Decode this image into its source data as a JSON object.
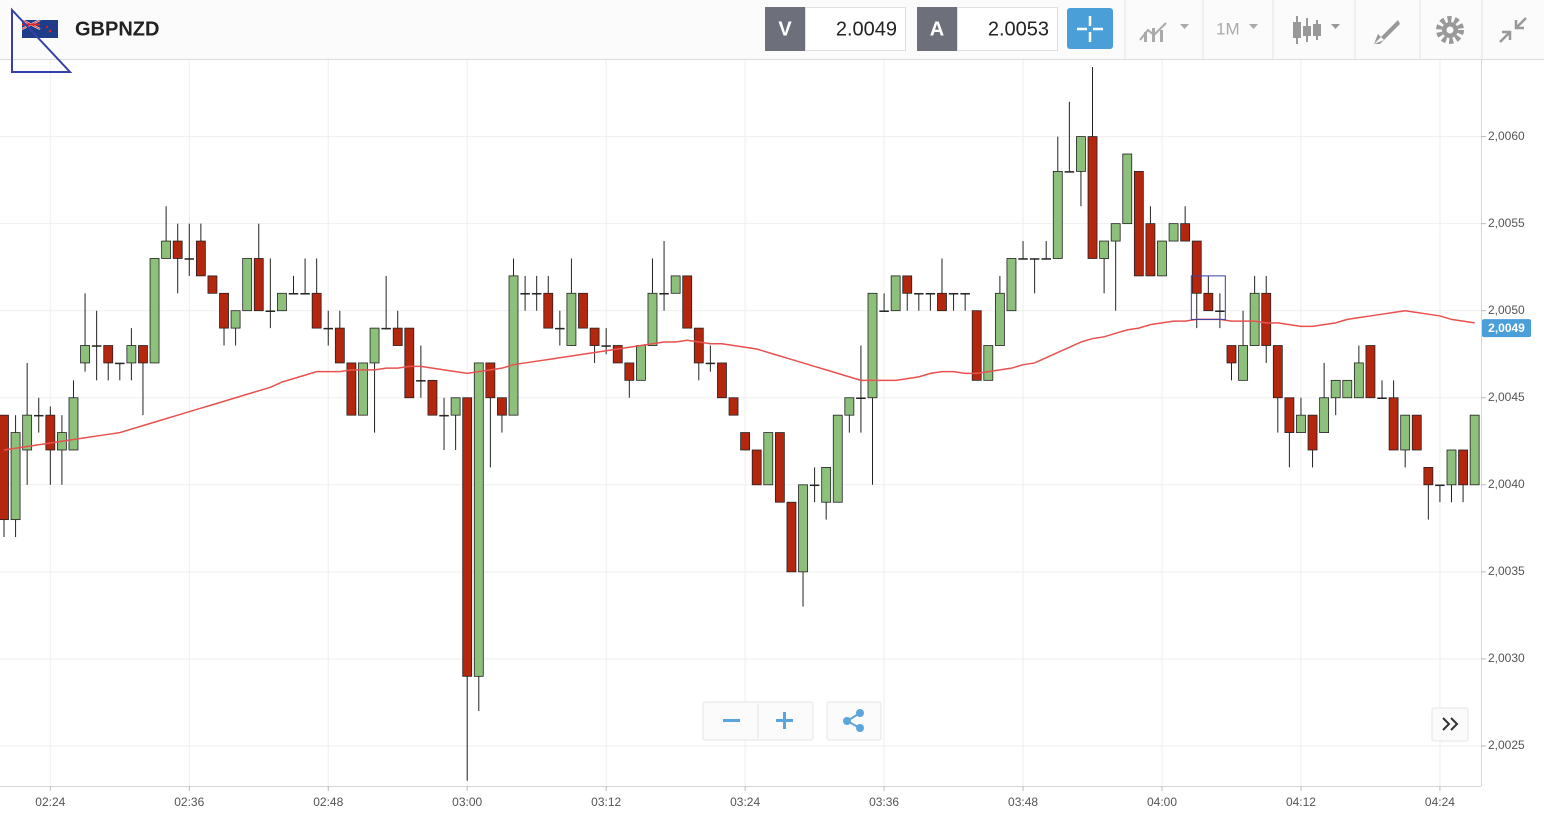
{
  "header": {
    "symbol": "GBPNZD",
    "bid_label": "V",
    "bid": 2.0049,
    "ask_label": "A",
    "ask": 2.0053,
    "timeframe": "1M"
  },
  "chart_data": {
    "type": "candlestick",
    "categories": [
      null,
      null,
      null,
      null,
      "02:24",
      null,
      null,
      null,
      null,
      null,
      null,
      null,
      null,
      null,
      null,
      null,
      "02:36",
      null,
      null,
      null,
      null,
      null,
      null,
      null,
      null,
      null,
      null,
      null,
      "02:48",
      null,
      null,
      null,
      null,
      null,
      null,
      null,
      null,
      null,
      null,
      null,
      "03:00",
      null,
      null,
      null,
      null,
      null,
      null,
      null,
      null,
      null,
      null,
      null,
      "03:12",
      null,
      null,
      null,
      null,
      null,
      null,
      null,
      null,
      null,
      null,
      null,
      "03:24",
      null,
      null,
      null,
      null,
      null,
      null,
      null,
      null,
      null,
      null,
      null,
      "03:36",
      null,
      null,
      null,
      null,
      null,
      null,
      null,
      null,
      null,
      null,
      null,
      "03:48",
      null,
      null,
      null,
      null,
      null,
      null,
      null,
      null,
      null,
      null,
      null,
      "04:00",
      null,
      null,
      null,
      null,
      null,
      null,
      null,
      null,
      null,
      null,
      null,
      "04:12",
      null,
      null,
      null,
      null,
      null,
      null,
      null,
      null,
      null,
      null,
      null,
      "04:24",
      null,
      null,
      null
    ],
    "open": [
      2.0044,
      2.0038,
      2.0042,
      2.0044,
      2.0044,
      2.0042,
      2.0042,
      2.0047,
      2.0048,
      2.0048,
      2.0047,
      2.0047,
      2.0048,
      2.0047,
      2.0053,
      2.0054,
      2.0053,
      2.0054,
      2.0052,
      2.0051,
      2.0049,
      2.005,
      2.0053,
      2.005,
      2.005,
      2.0051,
      2.0051,
      2.0051,
      2.0049,
      2.0049,
      2.0047,
      2.0044,
      2.0047,
      2.0049,
      2.0049,
      2.0049,
      2.0046,
      2.0046,
      2.0044,
      2.0044,
      2.0045,
      2.0029,
      2.0047,
      2.0045,
      2.0044,
      2.0051,
      2.0051,
      2.0051,
      2.0049,
      2.0048,
      2.0051,
      2.0049,
      2.0048,
      2.0048,
      2.0047,
      2.0046,
      2.0048,
      2.0051,
      2.0051,
      2.0052,
      2.0049,
      2.0047,
      2.0047,
      2.0045,
      2.0043,
      2.0042,
      2.004,
      2.0043,
      2.0039,
      2.0035,
      2.004,
      2.0039,
      2.0039,
      2.0044,
      2.0045,
      2.0045,
      2.005,
      2.005,
      2.0052,
      2.0051,
      2.0051,
      2.0051,
      2.0051,
      2.0051,
      2.005,
      2.0046,
      2.0048,
      2.005,
      2.0053,
      2.0053,
      2.0053,
      2.0053,
      2.0058,
      2.0058,
      2.006,
      2.0053,
      2.0054,
      2.0055,
      2.0058,
      2.0055,
      2.0052,
      2.0054,
      2.0055,
      2.0054,
      2.0051,
      2.005,
      2.0048,
      2.0046,
      2.0048,
      2.0051,
      2.0048,
      2.0045,
      2.0043,
      2.0044,
      2.0043,
      2.0045,
      2.0045,
      2.0045,
      2.0048,
      2.0045,
      2.0045,
      2.0042,
      2.0044,
      2.0041,
      2.004,
      2.004,
      2.0042,
      2.004
    ],
    "high": [
      2.0044,
      2.0044,
      2.0047,
      2.0045,
      2.00445,
      2.0044,
      2.0046,
      2.0051,
      2.005,
      2.0048,
      2.0047,
      2.0049,
      2.0048,
      2.0053,
      2.0056,
      2.0055,
      2.0055,
      2.0055,
      2.0052,
      2.0051,
      2.005,
      2.0053,
      2.0055,
      2.0053,
      2.0051,
      2.0052,
      2.0053,
      2.0053,
      2.005,
      2.005,
      2.0047,
      2.0047,
      2.0049,
      2.0052,
      2.005,
      2.0049,
      2.0048,
      2.0046,
      2.0045,
      2.0045,
      2.0045,
      2.0047,
      2.0047,
      2.0045,
      2.0053,
      2.0052,
      2.0052,
      2.0052,
      2.005,
      2.0053,
      2.0051,
      2.0049,
      2.0049,
      2.0048,
      2.0047,
      2.0048,
      2.0053,
      2.0054,
      2.0052,
      2.0052,
      2.0049,
      2.0048,
      2.0047,
      2.0045,
      2.0043,
      2.0042,
      2.0043,
      2.0043,
      2.0039,
      2.004,
      2.0041,
      2.0041,
      2.0044,
      2.0045,
      2.0048,
      2.0051,
      2.0051,
      2.0052,
      2.0052,
      2.0051,
      2.0051,
      2.0053,
      2.0051,
      2.0051,
      2.005,
      2.0048,
      2.0052,
      2.0053,
      2.0054,
      2.0053,
      2.0054,
      2.006,
      2.0062,
      2.006,
      2.0064,
      2.0054,
      2.0055,
      2.0059,
      2.0058,
      2.0056,
      2.0054,
      2.0055,
      2.0056,
      2.0054,
      2.0052,
      2.0051,
      2.0048,
      2.005,
      2.0052,
      2.0052,
      2.0048,
      2.0045,
      2.0045,
      2.0044,
      2.0047,
      2.0046,
      2.0046,
      2.0048,
      2.0048,
      2.0046,
      2.0046,
      2.0044,
      2.0044,
      2.0041,
      2.004,
      2.0042,
      2.0042,
      2.0044
    ],
    "low": [
      2.0037,
      2.0037,
      2.004,
      2.0043,
      2.004,
      2.004,
      2.0042,
      2.00465,
      2.0046,
      2.0046,
      2.0046,
      2.0046,
      2.0044,
      2.0047,
      2.0053,
      2.0051,
      2.0052,
      2.0052,
      2.0051,
      2.0048,
      2.0048,
      2.005,
      2.005,
      2.0049,
      2.005,
      2.0051,
      2.0051,
      2.0049,
      2.0048,
      2.0047,
      2.0044,
      2.0044,
      2.0043,
      2.0049,
      2.0048,
      2.0045,
      2.0045,
      2.0044,
      2.0042,
      2.0042,
      2.0023,
      2.0027,
      2.0041,
      2.0043,
      2.0044,
      2.005,
      2.005,
      2.0049,
      2.0048,
      2.0048,
      2.0049,
      2.0047,
      2.00475,
      2.0047,
      2.0045,
      2.0046,
      2.0048,
      2.005,
      2.0051,
      2.0049,
      2.0046,
      2.00465,
      2.0045,
      2.0044,
      2.0042,
      2.004,
      2.004,
      2.0039,
      2.0035,
      2.0033,
      2.0039,
      2.0038,
      2.0039,
      2.0043,
      2.0043,
      2.004,
      2.005,
      2.005,
      2.005,
      2.005,
      2.005,
      2.005,
      2.005,
      2.005,
      2.0046,
      2.0046,
      2.0048,
      2.005,
      2.0053,
      2.0051,
      2.0053,
      2.0053,
      2.0058,
      2.0056,
      2.0053,
      2.0051,
      2.005,
      2.0055,
      2.0052,
      2.0052,
      2.0052,
      2.0054,
      2.0054,
      2.0049,
      2.005,
      2.0049,
      2.0046,
      2.0046,
      2.0048,
      2.0047,
      2.0043,
      2.0041,
      2.0043,
      2.0041,
      2.0043,
      2.0044,
      2.0045,
      2.0045,
      2.0045,
      2.0045,
      2.0042,
      2.0041,
      2.0042,
      2.0038,
      2.0039,
      2.0039,
      2.0039,
      2.004
    ],
    "close": [
      2.0038,
      2.0043,
      2.0044,
      2.0044,
      2.0042,
      2.0043,
      2.0045,
      2.0048,
      2.0048,
      2.0047,
      2.0047,
      2.0048,
      2.0047,
      2.0053,
      2.0054,
      2.0053,
      2.0053,
      2.0052,
      2.0051,
      2.0049,
      2.005,
      2.0053,
      2.005,
      2.005,
      2.0051,
      2.0051,
      2.0051,
      2.0049,
      2.0049,
      2.0047,
      2.0044,
      2.0047,
      2.0049,
      2.0049,
      2.0048,
      2.0045,
      2.0046,
      2.0044,
      2.0044,
      2.0045,
      2.0029,
      2.0047,
      2.0045,
      2.0044,
      2.0052,
      2.0051,
      2.0051,
      2.0049,
      2.0049,
      2.0051,
      2.0049,
      2.0048,
      2.0048,
      2.0047,
      2.0046,
      2.0048,
      2.0051,
      2.0051,
      2.0052,
      2.0049,
      2.0047,
      2.0047,
      2.0045,
      2.0044,
      2.0042,
      2.004,
      2.0043,
      2.0039,
      2.0035,
      2.004,
      2.004,
      2.0041,
      2.0044,
      2.0045,
      2.0045,
      2.0051,
      2.005,
      2.0052,
      2.0051,
      2.0051,
      2.0051,
      2.005,
      2.0051,
      2.0051,
      2.0046,
      2.0048,
      2.0051,
      2.0053,
      2.0053,
      2.0053,
      2.0053,
      2.0058,
      2.0058,
      2.006,
      2.0053,
      2.0054,
      2.0055,
      2.0059,
      2.0052,
      2.0052,
      2.0054,
      2.0055,
      2.0054,
      2.0051,
      2.005,
      2.005,
      2.0047,
      2.0048,
      2.0051,
      2.0048,
      2.0045,
      2.0043,
      2.0044,
      2.0042,
      2.0045,
      2.0046,
      2.0046,
      2.0047,
      2.0045,
      2.0045,
      2.0042,
      2.0044,
      2.0042,
      2.004,
      2.004,
      2.0042,
      2.004,
      2.0044
    ],
    "up_color": "#8dc07a",
    "down_color": "#b5260f",
    "ma": {
      "color": "#e8514f",
      "values": [
        2.0042,
        2.00421,
        2.00422,
        2.00423,
        2.00424,
        2.00425,
        2.00426,
        2.00427,
        2.00428,
        2.00429,
        2.0043,
        2.00432,
        2.00434,
        2.00436,
        2.00438,
        2.0044,
        2.00442,
        2.00444,
        2.00446,
        2.00448,
        2.0045,
        2.00452,
        2.00454,
        2.00456,
        2.00459,
        2.00461,
        2.00463,
        2.00465,
        2.00465,
        2.00465,
        2.00466,
        2.00466,
        2.00466,
        2.00467,
        2.00467,
        2.00468,
        2.00468,
        2.00467,
        2.00466,
        2.00465,
        2.00464,
        2.00465,
        2.00466,
        2.00467,
        2.00469,
        2.0047,
        2.00471,
        2.00472,
        2.00473,
        2.00474,
        2.00475,
        2.00476,
        2.00477,
        2.00478,
        2.00479,
        2.0048,
        2.00481,
        2.00482,
        2.00482,
        2.00483,
        2.00482,
        2.00481,
        2.00481,
        2.0048,
        2.00479,
        2.00478,
        2.00476,
        2.00474,
        2.00472,
        2.0047,
        2.00468,
        2.00466,
        2.00464,
        2.00462,
        2.0046,
        2.0046,
        2.0046,
        2.0046,
        2.00461,
        2.00462,
        2.00464,
        2.00465,
        2.00465,
        2.00464,
        2.00464,
        2.00465,
        2.00466,
        2.00467,
        2.00469,
        2.0047,
        2.00473,
        2.00476,
        2.00479,
        2.00482,
        2.00484,
        2.00485,
        2.00487,
        2.00489,
        2.0049,
        2.00492,
        2.00493,
        2.00494,
        2.00494,
        2.00495,
        2.00495,
        2.00495,
        2.00494,
        2.00494,
        2.00494,
        2.00493,
        2.00493,
        2.00492,
        2.00491,
        2.00491,
        2.00492,
        2.00493,
        2.00495,
        2.00496,
        2.00497,
        2.00498,
        2.00499,
        2.005,
        2.00499,
        2.00498,
        2.00497,
        2.00495,
        2.00494,
        2.00493
      ]
    },
    "last_price": {
      "value": 2.0049,
      "label": "2,0049"
    },
    "ylim": [
      2.00227,
      2.00644
    ],
    "yticks": [
      {
        "value": 2.0025,
        "label": "2,0025"
      },
      {
        "value": 2.003,
        "label": "2,0030"
      },
      {
        "value": 2.0035,
        "label": "2,0035"
      },
      {
        "value": 2.004,
        "label": "2,0040"
      },
      {
        "value": 2.0045,
        "label": "2,0045"
      },
      {
        "value": 2.005,
        "label": "2,0050"
      },
      {
        "value": 2.0055,
        "label": "2,0055"
      },
      {
        "value": 2.006,
        "label": "2,0060"
      }
    ],
    "grid": true
  }
}
